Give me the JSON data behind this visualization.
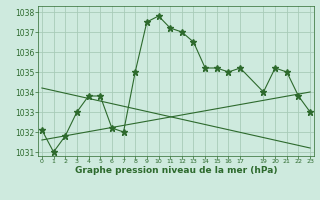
{
  "hours": [
    0,
    1,
    2,
    3,
    4,
    5,
    6,
    7,
    8,
    9,
    10,
    11,
    12,
    13,
    14,
    15,
    16,
    17,
    19,
    20,
    21,
    22,
    23
  ],
  "pressure": [
    1032.1,
    1031.0,
    1031.8,
    1033.0,
    1033.8,
    1033.8,
    1032.2,
    1032.0,
    1035.0,
    1037.5,
    1037.8,
    1037.2,
    1037.0,
    1036.5,
    1035.2,
    1035.2,
    1035.0,
    1035.2,
    1034.0,
    1035.2,
    1035.0,
    1033.8,
    1033.0
  ],
  "trend_line1": [
    [
      0,
      1034.2
    ],
    [
      23,
      1031.2
    ]
  ],
  "trend_line2": [
    [
      0,
      1031.6
    ],
    [
      23,
      1034.0
    ]
  ],
  "ylim": [
    1030.8,
    1038.3
  ],
  "yticks": [
    1031,
    1032,
    1033,
    1034,
    1035,
    1036,
    1037,
    1038
  ],
  "xticks": [
    0,
    1,
    2,
    3,
    4,
    5,
    6,
    7,
    8,
    9,
    10,
    11,
    12,
    13,
    14,
    15,
    16,
    17,
    19,
    20,
    21,
    22,
    23
  ],
  "xlabel": "Graphe pression niveau de la mer (hPa)",
  "line_color": "#2d6a2d",
  "bg_color": "#ceeade",
  "grid_color": "#a8cbb8"
}
